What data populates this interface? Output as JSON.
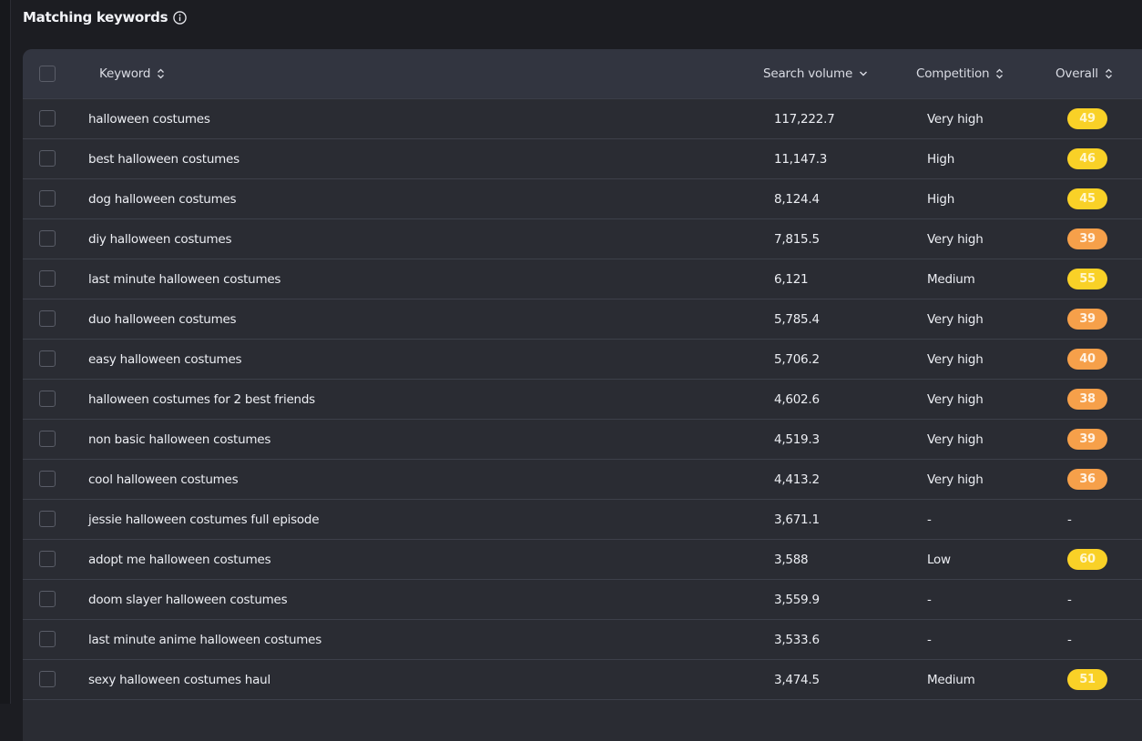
{
  "section": {
    "title": "Matching keywords"
  },
  "columns": {
    "keyword": "Keyword",
    "search_volume": "Search volume",
    "competition": "Competition",
    "overall": "Overall"
  },
  "colors": {
    "badge_yellow": "#f9d127",
    "badge_orange": "#f6a04a"
  },
  "rows": [
    {
      "keyword": "halloween costumes",
      "volume": "117,222.7",
      "competition": "Very high",
      "overall": "49",
      "badge": "yellow"
    },
    {
      "keyword": "best halloween costumes",
      "volume": "11,147.3",
      "competition": "High",
      "overall": "46",
      "badge": "yellow"
    },
    {
      "keyword": "dog halloween costumes",
      "volume": "8,124.4",
      "competition": "High",
      "overall": "45",
      "badge": "yellow"
    },
    {
      "keyword": "diy halloween costumes",
      "volume": "7,815.5",
      "competition": "Very high",
      "overall": "39",
      "badge": "orange"
    },
    {
      "keyword": "last minute halloween costumes",
      "volume": "6,121",
      "competition": "Medium",
      "overall": "55",
      "badge": "yellow"
    },
    {
      "keyword": "duo halloween costumes",
      "volume": "5,785.4",
      "competition": "Very high",
      "overall": "39",
      "badge": "orange"
    },
    {
      "keyword": "easy halloween costumes",
      "volume": "5,706.2",
      "competition": "Very high",
      "overall": "40",
      "badge": "orange"
    },
    {
      "keyword": "halloween costumes for 2 best friends",
      "volume": "4,602.6",
      "competition": "Very high",
      "overall": "38",
      "badge": "orange"
    },
    {
      "keyword": "non basic halloween costumes",
      "volume": "4,519.3",
      "competition": "Very high",
      "overall": "39",
      "badge": "orange"
    },
    {
      "keyword": "cool halloween costumes",
      "volume": "4,413.2",
      "competition": "Very high",
      "overall": "36",
      "badge": "orange"
    },
    {
      "keyword": "jessie halloween costumes full episode",
      "volume": "3,671.1",
      "competition": "-",
      "overall": "-",
      "badge": "none"
    },
    {
      "keyword": "adopt me halloween costumes",
      "volume": "3,588",
      "competition": "Low",
      "overall": "60",
      "badge": "yellow"
    },
    {
      "keyword": "doom slayer halloween costumes",
      "volume": "3,559.9",
      "competition": "-",
      "overall": "-",
      "badge": "none"
    },
    {
      "keyword": "last minute anime halloween costumes",
      "volume": "3,533.6",
      "competition": "-",
      "overall": "-",
      "badge": "none"
    },
    {
      "keyword": "sexy halloween costumes haul",
      "volume": "3,474.5",
      "competition": "Medium",
      "overall": "51",
      "badge": "yellow"
    }
  ]
}
